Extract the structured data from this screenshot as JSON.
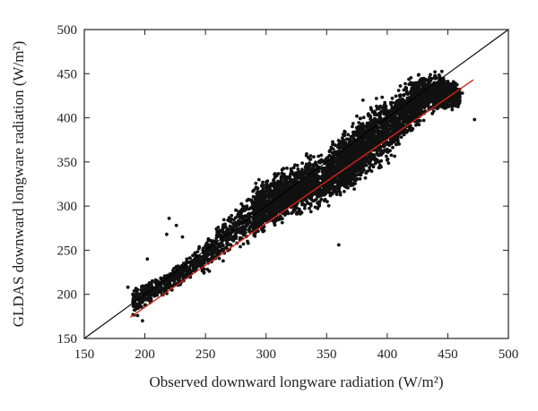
{
  "chart_data": {
    "type": "scatter",
    "xlabel": "Observed downward longware radiation (W/m²)",
    "ylabel": "GLDAS downward longware radiation (W/m²)",
    "xlim": [
      150,
      500
    ],
    "ylim": [
      150,
      500
    ],
    "xticks": [
      "150",
      "200",
      "250",
      "300",
      "350",
      "400",
      "450",
      "500"
    ],
    "yticks": [
      "150",
      "200",
      "250",
      "300",
      "350",
      "400",
      "450",
      "500"
    ],
    "grid": false,
    "point_color": "#111111",
    "reference_line": {
      "x": [
        150,
        500
      ],
      "y": [
        150,
        500
      ],
      "color": "#000000"
    },
    "fit_line": {
      "x": [
        188,
        471
      ],
      "y": [
        174,
        443
      ],
      "color": "#d62416"
    },
    "cloud_envelope": {
      "x": [
        190,
        210,
        230,
        250,
        270,
        290,
        310,
        330,
        350,
        370,
        390,
        410,
        430,
        450,
        465
      ],
      "y_upper": [
        212,
        222,
        242,
        262,
        300,
        330,
        348,
        358,
        372,
        396,
        426,
        445,
        460,
        452,
        430
      ],
      "y_lower": [
        170,
        192,
        205,
        222,
        238,
        255,
        272,
        285,
        295,
        310,
        330,
        355,
        395,
        405,
        412
      ]
    },
    "outliers": [
      {
        "x": 220,
        "y": 286
      },
      {
        "x": 226,
        "y": 278
      },
      {
        "x": 218,
        "y": 268
      },
      {
        "x": 231,
        "y": 265
      },
      {
        "x": 472,
        "y": 398
      },
      {
        "x": 455,
        "y": 440
      },
      {
        "x": 380,
        "y": 420
      },
      {
        "x": 202,
        "y": 240
      },
      {
        "x": 194,
        "y": 176
      },
      {
        "x": 198,
        "y": 170
      },
      {
        "x": 186,
        "y": 208
      },
      {
        "x": 190,
        "y": 200
      },
      {
        "x": 462,
        "y": 428
      },
      {
        "x": 360,
        "y": 256
      }
    ]
  }
}
